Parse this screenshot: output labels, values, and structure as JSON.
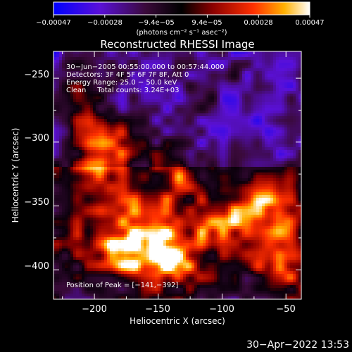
{
  "chart_data": {
    "type": "heatmap",
    "title": "Reconstructed RHESSI Image",
    "xlabel": "Heliocentric X (arcsec)",
    "ylabel": "Heliocentric Y (arcsec)",
    "xlim": [
      -232,
      -38
    ],
    "ylim": [
      -423,
      -229
    ],
    "x_ticks": [
      -200,
      -150,
      -100,
      -50
    ],
    "y_ticks": [
      -250,
      -300,
      -350,
      -400
    ],
    "x_tick_labels": [
      "−200",
      "−150",
      "−100",
      "−50"
    ],
    "y_tick_labels": [
      "−250",
      "−300",
      "−350",
      "−400"
    ],
    "colorbar": {
      "range": [
        -0.00047,
        0.00047
      ],
      "tick_labels": [
        "−0.00047",
        "−0.00028",
        "−9.4e−05",
        "9.4e−05",
        "0.00028",
        "0.00047"
      ],
      "unit_label": "(photons cm⁻² s⁻¹ asec⁻²)",
      "colors": [
        "#0000ff",
        "#6a00c8",
        "#3a0030",
        "#7a0000",
        "#ff2a00",
        "#ffb000",
        "#ffffff"
      ]
    },
    "annotations": [
      "30−Jun−2005 00:55:00.000 to 00:57:44.000",
      "Detectors: 3F 4F 5F 6F 7F 8F, Att 0",
      "Energy Range: 25.0 − 50.0 keV",
      "Clean     Total counts: 3.24E+03"
    ],
    "peak_label": "Position of Peak = [−141,−392]",
    "peak": [
      -141,
      -392
    ],
    "sources": [
      {
        "x": -141,
        "y": -392,
        "strength": 1.0
      },
      {
        "x": -175,
        "y": -385,
        "strength": 0.7
      },
      {
        "x": -100,
        "y": -365,
        "strength": 0.75
      },
      {
        "x": -180,
        "y": -300,
        "strength": 0.6
      },
      {
        "x": -205,
        "y": -318,
        "strength": 0.55
      },
      {
        "x": -60,
        "y": -355,
        "strength": 0.7
      },
      {
        "x": -155,
        "y": -355,
        "strength": 0.55
      },
      {
        "x": -55,
        "y": -395,
        "strength": 0.6
      },
      {
        "x": -210,
        "y": -270,
        "strength": 0.35
      },
      {
        "x": -130,
        "y": -325,
        "strength": 0.45
      },
      {
        "x": -215,
        "y": -375,
        "strength": 0.5
      }
    ]
  },
  "timestamp": "30−Apr−2022 13:53"
}
